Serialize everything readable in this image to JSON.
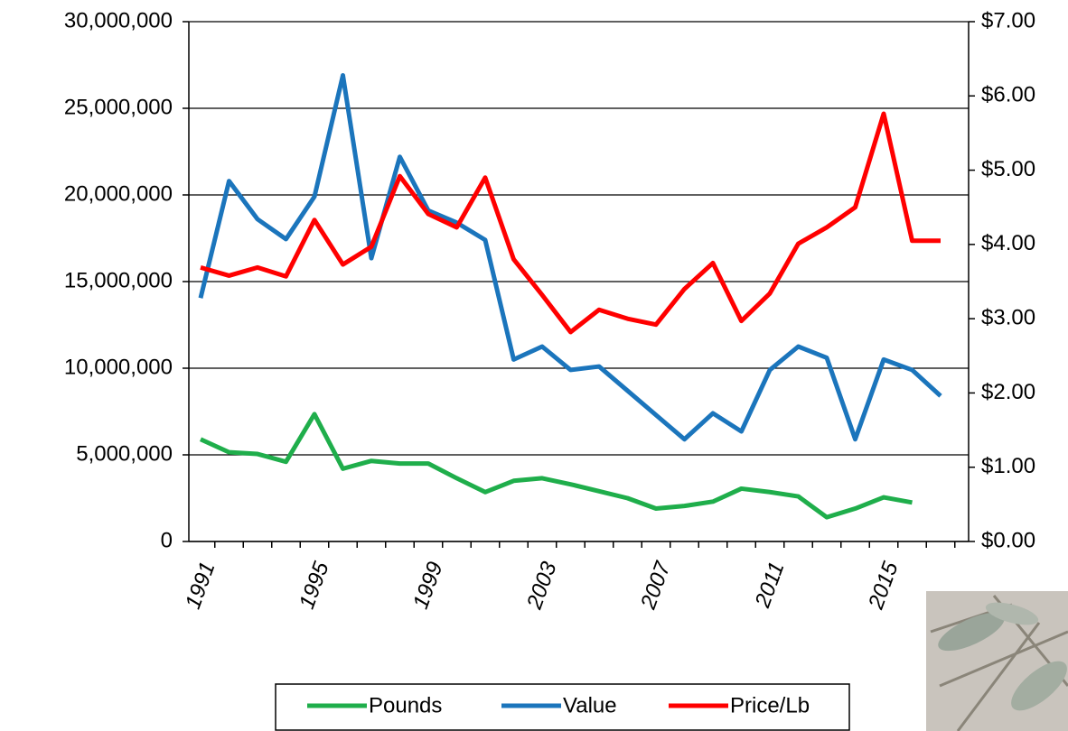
{
  "chart_data": {
    "type": "line",
    "categories": [
      "1991",
      null,
      null,
      null,
      "1995",
      null,
      null,
      null,
      "1999",
      null,
      null,
      null,
      "2003",
      null,
      null,
      null,
      "2007",
      null,
      null,
      null,
      "2011",
      null,
      null,
      null,
      "2015",
      null,
      null
    ],
    "series": [
      {
        "name": "Pounds",
        "color": "#1fae4b",
        "values": [
          5900000,
          5150000,
          5050000,
          4600000,
          7350000,
          4200000,
          4650000,
          4500000,
          4500000,
          3650000,
          2850000,
          3500000,
          3650000,
          3300000,
          2900000,
          2500000,
          1900000,
          2050000,
          2300000,
          3050000,
          2850000,
          2600000,
          1400000,
          1900000,
          2550000,
          2250000,
          null
        ]
      },
      {
        "name": "Value",
        "color": "#1b75bc",
        "values": [
          14050000,
          20800000,
          18600000,
          17450000,
          19900000,
          26900000,
          16350000,
          22200000,
          19100000,
          18400000,
          17400000,
          10500000,
          11250000,
          9900000,
          10100000,
          8700000,
          7300000,
          5900000,
          7400000,
          6350000,
          9900000,
          11250000,
          10600000,
          5900000,
          10500000,
          9900000,
          8400000
        ]
      },
      {
        "name": "Price/Lb",
        "color": "#ff0000",
        "axis": "y2",
        "values": [
          3.69,
          3.58,
          3.69,
          3.57,
          4.33,
          3.73,
          3.97,
          4.92,
          4.41,
          4.23,
          4.9,
          3.8,
          3.32,
          2.82,
          3.12,
          3.0,
          2.92,
          3.4,
          3.75,
          2.97,
          3.34,
          4.01,
          4.23,
          4.5,
          5.76,
          4.05,
          4.05
        ]
      }
    ],
    "ylim": [
      0,
      30000000
    ],
    "yticks": [
      0,
      {
        "value": 5000000,
        "label": "5,000,000"
      },
      {
        "value": 10000000,
        "label": "10,000,000"
      },
      {
        "value": 15000000,
        "label": "15,000,000"
      },
      {
        "value": 20000000,
        "label": "20,000,000"
      },
      {
        "value": 25000000,
        "label": "25,000,000"
      },
      {
        "value": 30000000,
        "label": "30,000,000"
      }
    ],
    "y2lim": [
      0,
      7
    ],
    "y2ticks": [
      {
        "value": 0,
        "label": "$0.00"
      },
      {
        "value": 1,
        "label": "$1.00"
      },
      {
        "value": 2,
        "label": "$2.00"
      },
      {
        "value": 3,
        "label": "$3.00"
      },
      {
        "value": 4,
        "label": "$4.00"
      },
      {
        "value": 5,
        "label": "$5.00"
      },
      {
        "value": 6,
        "label": "$6.00"
      },
      {
        "value": 7,
        "label": "$7.00"
      }
    ],
    "grid": true,
    "legend": "bottom"
  }
}
